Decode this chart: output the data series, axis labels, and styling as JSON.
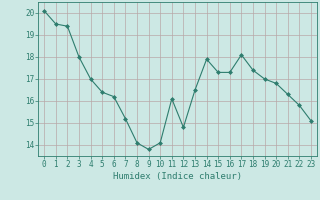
{
  "x": [
    0,
    1,
    2,
    3,
    4,
    5,
    6,
    7,
    8,
    9,
    10,
    11,
    12,
    13,
    14,
    15,
    16,
    17,
    18,
    19,
    20,
    21,
    22,
    23
  ],
  "y": [
    20.1,
    19.5,
    19.4,
    18.0,
    17.0,
    16.4,
    16.2,
    15.2,
    14.1,
    13.8,
    14.1,
    16.1,
    14.8,
    16.5,
    17.9,
    17.3,
    17.3,
    18.1,
    17.4,
    17.0,
    16.8,
    16.3,
    15.8,
    15.1
  ],
  "line_color": "#2e7d6e",
  "marker": "D",
  "marker_size": 2.0,
  "bg_color": "#cce8e4",
  "grid_color": "#b8a8a8",
  "xlabel": "Humidex (Indice chaleur)",
  "ylabel_ticks": [
    14,
    15,
    16,
    17,
    18,
    19,
    20
  ],
  "xlim": [
    -0.5,
    23.5
  ],
  "ylim": [
    13.5,
    20.5
  ],
  "xticks": [
    0,
    1,
    2,
    3,
    4,
    5,
    6,
    7,
    8,
    9,
    10,
    11,
    12,
    13,
    14,
    15,
    16,
    17,
    18,
    19,
    20,
    21,
    22,
    23
  ],
  "tick_color": "#2e7d6e",
  "label_fontsize": 6.5,
  "tick_fontsize": 5.5,
  "linewidth": 0.8
}
